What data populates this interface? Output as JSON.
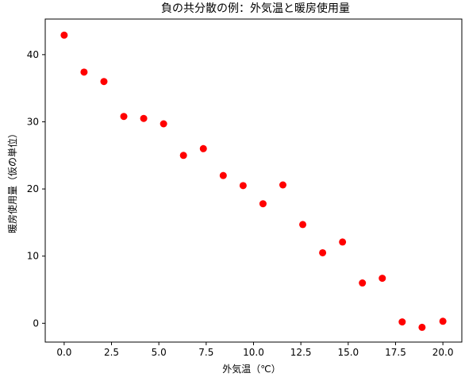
{
  "chart_data": {
    "type": "scatter",
    "title": "負の共分散の例：外気温と暖房使用量",
    "xlabel": "外気温（℃）",
    "ylabel": "暖房使用量（仮の単位）",
    "xlim": [
      -1.0,
      21.0
    ],
    "ylim": [
      -2.8,
      45.3
    ],
    "x_ticks": [
      0.0,
      2.5,
      5.0,
      7.5,
      10.0,
      12.5,
      15.0,
      17.5,
      20.0
    ],
    "x_tick_labels": [
      "0.0",
      "2.5",
      "5.0",
      "7.5",
      "10.0",
      "12.5",
      "15.0",
      "17.5",
      "20.0"
    ],
    "y_ticks": [
      0,
      10,
      20,
      30,
      40
    ],
    "y_tick_labels": [
      "0",
      "10",
      "20",
      "30",
      "40"
    ],
    "grid": false,
    "point_color": "#ff0000",
    "x": [
      0.0,
      1.05,
      2.1,
      3.15,
      4.2,
      5.25,
      6.3,
      7.35,
      8.4,
      9.45,
      10.5,
      11.55,
      12.6,
      13.65,
      14.7,
      15.75,
      16.8,
      17.85,
      18.9,
      20.0
    ],
    "y": [
      42.9,
      37.4,
      36.0,
      30.8,
      30.5,
      29.7,
      25.0,
      26.0,
      22.0,
      20.5,
      17.8,
      20.6,
      14.7,
      10.5,
      12.1,
      6.0,
      6.7,
      0.2,
      -0.6,
      0.3
    ]
  }
}
